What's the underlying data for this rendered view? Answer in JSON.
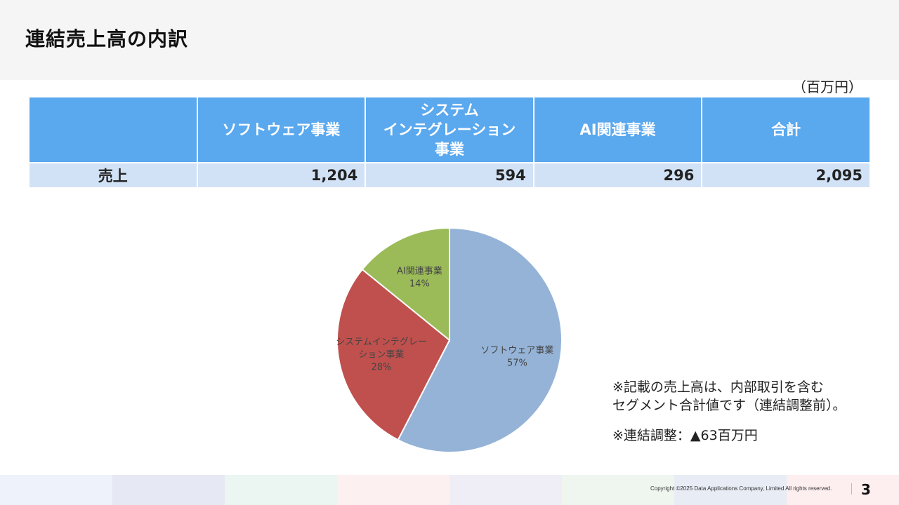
{
  "title": "連結売上高の内訳",
  "unit": "（百万円）",
  "table": {
    "headers": [
      "",
      "ソフトウェア事業",
      "システム\nインテグレーション\n事業",
      "AI関連事業",
      "合計"
    ],
    "row": {
      "label": "売上",
      "values": [
        "1,204",
        "594",
        "296",
        "2,095"
      ]
    }
  },
  "chart_data": {
    "type": "pie",
    "slices": [
      {
        "label": "ソフトウェア事業",
        "value": 57,
        "pct_label": "57%",
        "color": "#95b3d7"
      },
      {
        "label": "システムインテグレーション事業",
        "label_lines": [
          "システムインテグレー",
          "ション事業"
        ],
        "value": 28,
        "pct_label": "28%",
        "color": "#c0504d"
      },
      {
        "label": "AI関連事業",
        "value": 14,
        "pct_label": "14%",
        "color": "#9bbb59"
      }
    ]
  },
  "notes": {
    "line1": "※記載の売上高は、内部取引を含む",
    "line2": "セグメント合計値です（連結調整前）。",
    "line3": "※連結調整：▲63百万円"
  },
  "footer": {
    "copyright": "Copyright ©2025  Data Applications Company, Limited All rights reserved.",
    "page": "3",
    "band_colors": [
      "#eef2fb",
      "#e6e8f3",
      "#ebf5f1",
      "#fcf0f1",
      "#efedf6",
      "#eef6ef",
      "#e8ecf5",
      "#fdeef0"
    ]
  }
}
